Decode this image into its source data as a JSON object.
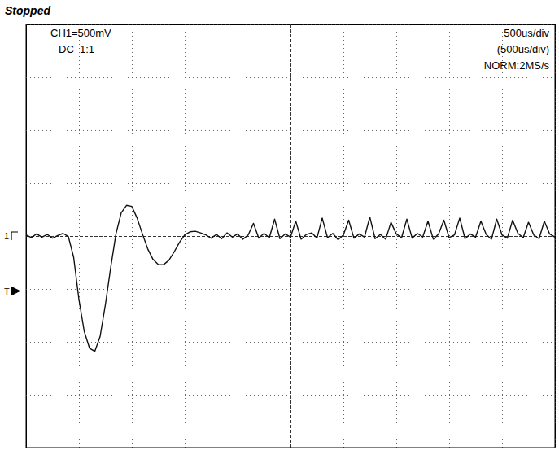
{
  "chart_data": {
    "type": "line",
    "status": "Stopped",
    "channel": "CH1=500mV",
    "coupling": "DC  1:1",
    "timebase": "500us/div",
    "timebase_zoom": "(500us/div)",
    "acquisition": "NORM:2MS/s",
    "x": [
      0,
      50,
      100,
      150,
      200,
      250,
      300,
      350,
      400,
      450,
      500,
      550,
      600,
      650,
      700,
      750,
      800,
      850,
      900,
      950,
      1000,
      1050,
      1100,
      1150,
      1200,
      1250,
      1300,
      1350,
      1400,
      1450,
      1500,
      1550,
      1600,
      1650,
      1700,
      1750,
      1800,
      1850,
      1900,
      1950,
      2000,
      2050,
      2100,
      2150,
      2200,
      2250,
      2300,
      2350,
      2400,
      2450,
      2500,
      2550,
      2600,
      2650,
      2700,
      2750,
      2800,
      2850,
      2900,
      2950,
      3000,
      3050,
      3100,
      3150,
      3200,
      3250,
      3300,
      3350,
      3400,
      3450,
      3500,
      3550,
      3600,
      3650,
      3700,
      3750,
      3800,
      3850,
      3900,
      3950,
      4000,
      4050,
      4100,
      4150,
      4200,
      4250,
      4300,
      4350,
      4400,
      4450,
      4500,
      4550,
      4600,
      4650,
      4700,
      4750,
      4800,
      4850,
      4900,
      4950,
      5000
    ],
    "values": [
      10,
      -15,
      20,
      -10,
      15,
      -20,
      5,
      25,
      -5,
      -200,
      -600,
      -900,
      -1060,
      -1090,
      -950,
      -650,
      -300,
      20,
      220,
      290,
      280,
      170,
      20,
      -120,
      -220,
      -270,
      -270,
      -230,
      -150,
      -60,
      10,
      40,
      45,
      30,
      10,
      -20,
      15,
      -25,
      30,
      -10,
      20,
      -30,
      10,
      120,
      -20,
      25,
      -15,
      160,
      -25,
      20,
      -10,
      140,
      -30,
      15,
      30,
      -20,
      170,
      -15,
      25,
      -35,
      10,
      150,
      -20,
      20,
      -10,
      180,
      -25,
      15,
      -30,
      130,
      20,
      -15,
      160,
      -20,
      25,
      -10,
      140,
      -30,
      20,
      150,
      -15,
      10,
      170,
      -25,
      20,
      -10,
      140,
      15,
      -30,
      160,
      10,
      -20,
      150,
      25,
      -15,
      130,
      10,
      -25,
      140,
      20,
      -10
    ],
    "color": "#111111",
    "xlim": [
      0,
      5000
    ],
    "ylim": [
      -2000,
      2000
    ],
    "xticks": [
      0,
      500,
      1000,
      1500,
      2000,
      2500,
      3000,
      3500,
      4000,
      4500,
      5000
    ],
    "yticks": [
      -2000,
      -1500,
      -1000,
      -500,
      0,
      500,
      1000,
      1500,
      2000
    ],
    "grid": true,
    "tick_labels": false,
    "markers": [
      {
        "label": "1",
        "value": 0
      },
      {
        "label": "T",
        "value": -520
      }
    ]
  }
}
